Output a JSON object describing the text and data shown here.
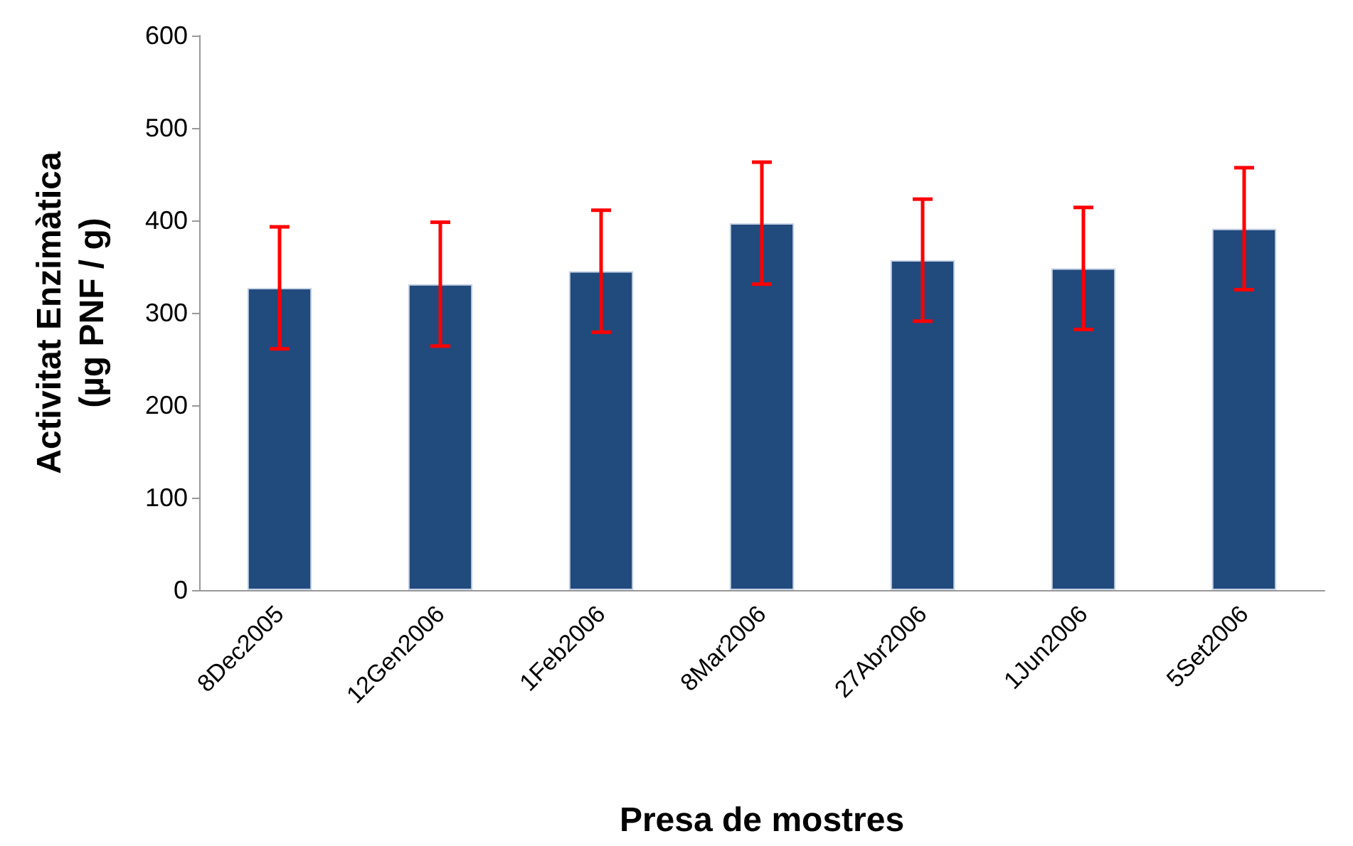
{
  "chart_data": {
    "type": "bar",
    "xlabel": "Presa de mostres",
    "ylabel": "Activitat Enzimàtica\n(µg PNF / g)",
    "categories": [
      "8Dec2005",
      "12Gen2006",
      "1Feb2006",
      "8Mar2006",
      "27Abr2006",
      "1Jun2006",
      "5Set2006"
    ],
    "values": [
      327,
      331,
      345,
      397,
      357,
      348,
      391
    ],
    "errors": [
      66,
      67,
      66,
      66,
      66,
      66,
      66
    ],
    "color": "#214a7d",
    "ylim": [
      0,
      600
    ],
    "yticks": [
      0,
      100,
      200,
      300,
      400,
      500,
      600
    ],
    "grid": false
  }
}
